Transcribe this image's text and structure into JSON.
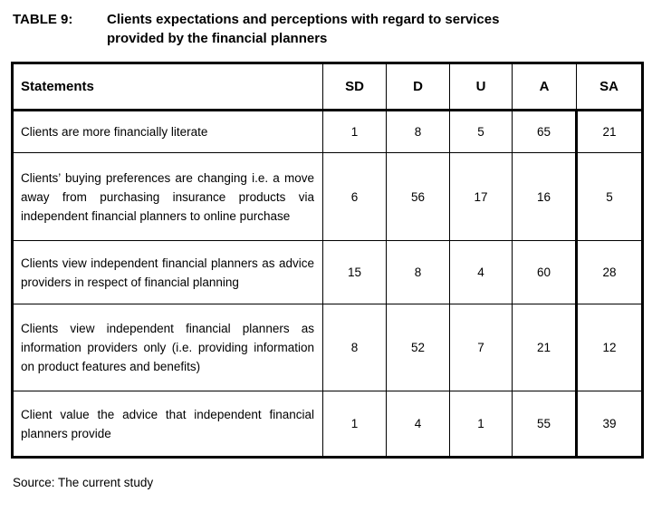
{
  "caption": {
    "label": "TABLE 9:",
    "line1": "Clients expectations and perceptions with regard to services",
    "line2": "provided by the financial planners"
  },
  "table": {
    "header": [
      "Statements",
      "SD",
      "D",
      "U",
      "A",
      "SA"
    ],
    "rows": [
      {
        "statement": "Clients are more financially literate",
        "values": [
          "1",
          "8",
          "5",
          "65",
          "21"
        ]
      },
      {
        "statement": "Clients’ buying preferences are changing i.e. a move away from purchasing insurance products via independent financial planners to online purchase",
        "values": [
          "6",
          "56",
          "17",
          "16",
          "5"
        ]
      },
      {
        "statement": "Clients view independent financial planners as advice providers in respect of financial planning",
        "values": [
          "15",
          "8",
          "4",
          "60",
          "28"
        ]
      },
      {
        "statement": "Clients view independent financial planners as information providers only (i.e. providing information on product features and benefits)",
        "values": [
          "8",
          "52",
          "7",
          "21",
          "12"
        ]
      },
      {
        "statement": "Client value the advice that independent financial planners provide",
        "values": [
          "1",
          "4",
          "1",
          "55",
          "39"
        ]
      }
    ]
  },
  "source": "Source: The current study"
}
